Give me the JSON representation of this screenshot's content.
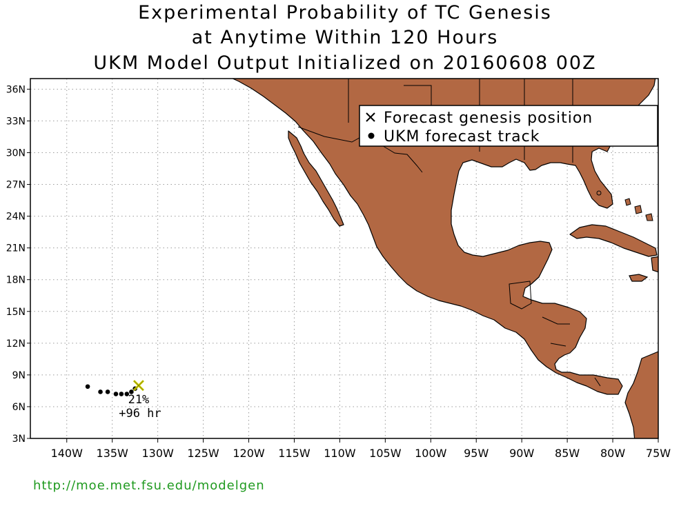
{
  "title": {
    "line1": "Experimental Probability of TC Genesis",
    "line2": "at Anytime Within 120 Hours",
    "line3": "UKM Model Output Initialized on 20160608 00Z"
  },
  "map": {
    "lon_range": [
      -144,
      -75
    ],
    "lat_range": [
      3,
      37
    ],
    "grid": true,
    "land_color": "#b26843",
    "ocean_color": "#ffffff",
    "lon_ticks": [
      {
        "value": -140,
        "label": "140W"
      },
      {
        "value": -135,
        "label": "135W"
      },
      {
        "value": -130,
        "label": "130W"
      },
      {
        "value": -125,
        "label": "125W"
      },
      {
        "value": -120,
        "label": "120W"
      },
      {
        "value": -115,
        "label": "115W"
      },
      {
        "value": -110,
        "label": "110W"
      },
      {
        "value": -105,
        "label": "105W"
      },
      {
        "value": -100,
        "label": "100W"
      },
      {
        "value": -95,
        "label": "95W"
      },
      {
        "value": -90,
        "label": "90W"
      },
      {
        "value": -85,
        "label": "85W"
      },
      {
        "value": -80,
        "label": "80W"
      },
      {
        "value": -75,
        "label": "75W"
      }
    ],
    "lat_ticks": [
      {
        "value": 3,
        "label": "3N"
      },
      {
        "value": 6,
        "label": "6N"
      },
      {
        "value": 9,
        "label": "9N"
      },
      {
        "value": 12,
        "label": "12N"
      },
      {
        "value": 15,
        "label": "15N"
      },
      {
        "value": 18,
        "label": "18N"
      },
      {
        "value": 21,
        "label": "21N"
      },
      {
        "value": 24,
        "label": "24N"
      },
      {
        "value": 27,
        "label": "27N"
      },
      {
        "value": 30,
        "label": "30N"
      },
      {
        "value": 33,
        "label": "33N"
      },
      {
        "value": 36,
        "label": "36N"
      }
    ]
  },
  "legend": {
    "genesis_label": "Forecast genesis position",
    "track_label": "UKM forecast track",
    "position": "top-right"
  },
  "forecast": {
    "track_points": [
      {
        "lon": -137.7,
        "lat": 7.9
      },
      {
        "lon": -136.3,
        "lat": 7.4
      },
      {
        "lon": -135.5,
        "lat": 7.4
      },
      {
        "lon": -134.6,
        "lat": 7.2
      },
      {
        "lon": -134.0,
        "lat": 7.2
      },
      {
        "lon": -133.4,
        "lat": 7.2
      },
      {
        "lon": -132.9,
        "lat": 7.4
      },
      {
        "lon": -132.5,
        "lat": 7.7
      }
    ],
    "genesis": {
      "lon": -132.1,
      "lat": 8.0
    },
    "genesis_color": "#d4d400",
    "probability": "21%",
    "lead_time": "+96 hr"
  },
  "footer": {
    "url": "http://moe.met.fsu.edu/modelgen",
    "color": "#1f9a1f"
  }
}
